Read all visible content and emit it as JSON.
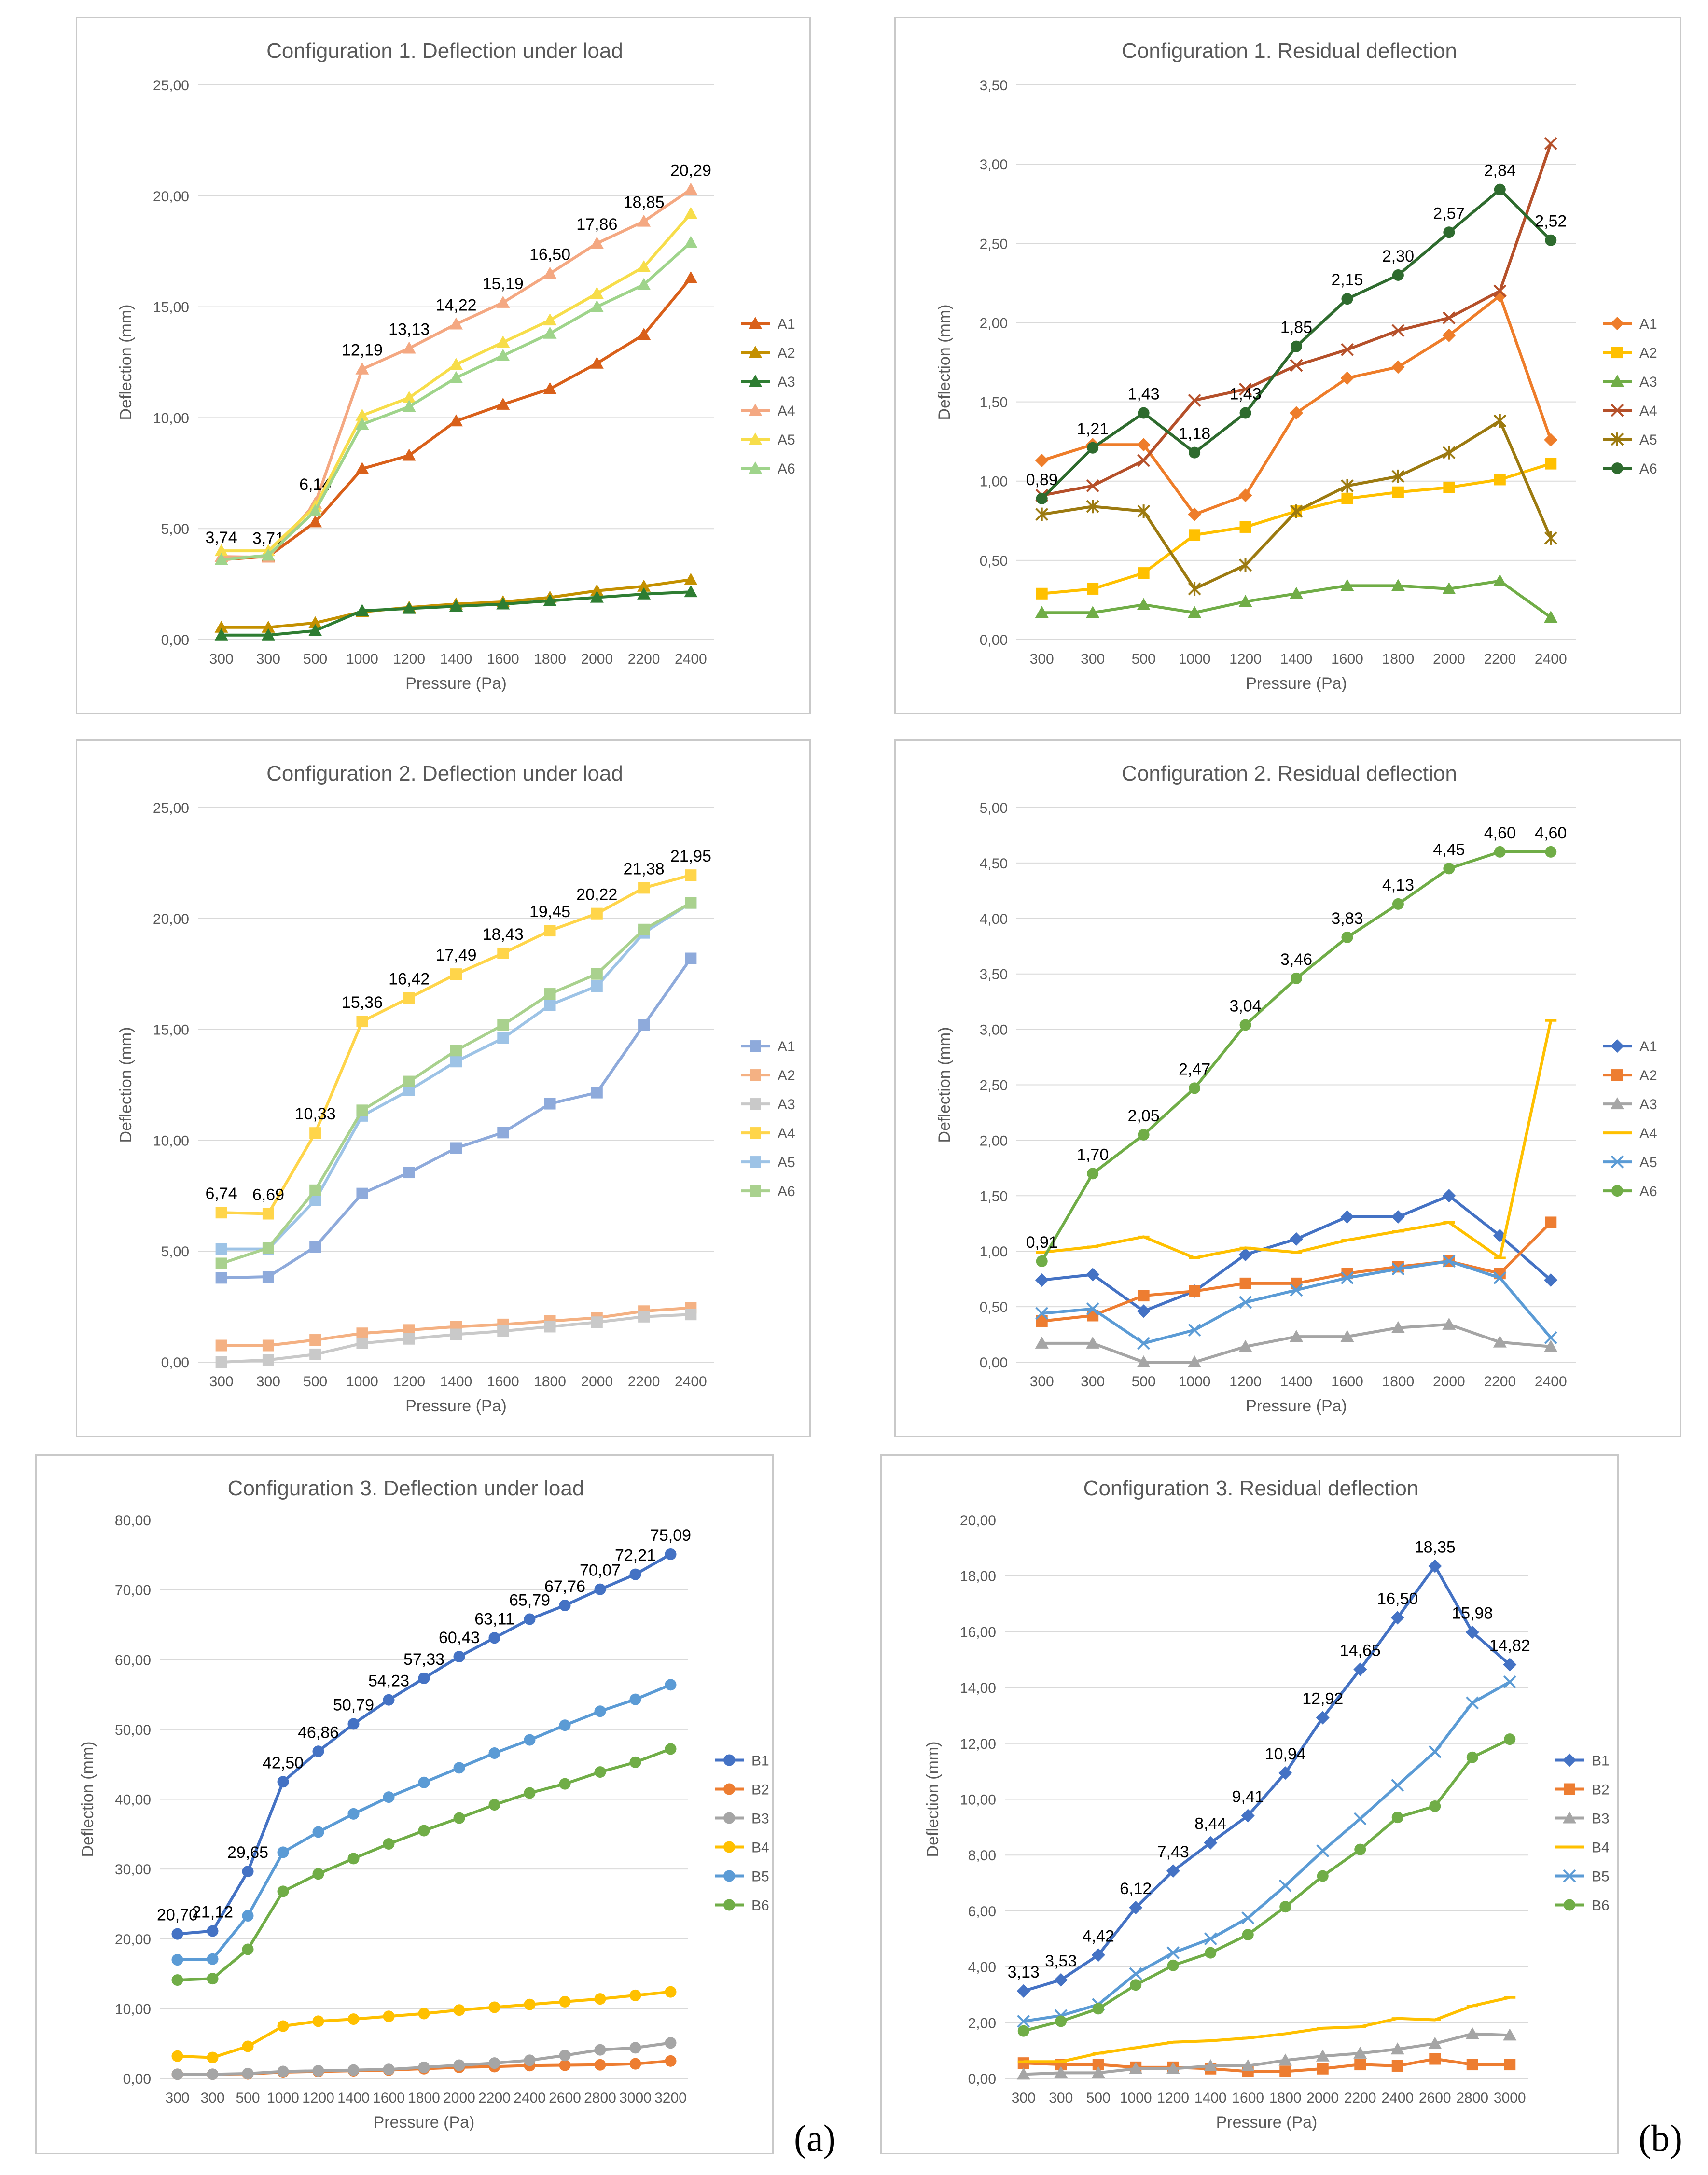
{
  "labels": {
    "a": "(a)",
    "b": "(b)"
  },
  "colors": {
    "A1": "#d9601a",
    "A2": "#c49000",
    "A3": "#2e7d32",
    "A4": "#f4a882",
    "A5": "#f7dd4a",
    "A6": "#9fd48b",
    "C1": "#ee7d2a",
    "C2": "#ffc000",
    "C3": "#70ad47",
    "C4": "#b5502a",
    "C5": "#9c7a10",
    "C6": "#2e6b2e",
    "P1": "#4472c4",
    "P2": "#ed7d31",
    "P3": "#a5a5a5",
    "P4": "#ffc000",
    "P5": "#5b9bd5",
    "P6": "#70ad47",
    "Q1": "#8eaadb",
    "Q2": "#f4b183",
    "Q3": "#c9c9c9",
    "Q4": "#ffd54a",
    "Q5": "#9dc3e6",
    "Q6": "#a9d18e"
  },
  "chart_data": [
    {
      "type": "line",
      "title": "Configuration 1. Deflection under load",
      "xlabel": "Pressure (Pa)",
      "ylabel": "Deflection (mm)",
      "ylim": [
        0,
        25
      ],
      "yticks": [
        "0,00",
        "5,00",
        "10,00",
        "15,00",
        "20,00",
        "25,00"
      ],
      "categories": [
        "300",
        "300",
        "500",
        "1000",
        "1200",
        "1400",
        "1600",
        "1800",
        "2000",
        "2200",
        "2400"
      ],
      "legend": "right",
      "grid": "horizontal",
      "series": [
        {
          "name": "A1",
          "color": "A1",
          "marker": "triangle",
          "values": [
            3.6,
            3.75,
            5.3,
            7.7,
            8.3,
            9.85,
            10.6,
            11.3,
            12.45,
            13.75,
            16.3
          ]
        },
        {
          "name": "A2",
          "color": "A2",
          "marker": "triangle",
          "values": [
            0.55,
            0.55,
            0.75,
            1.25,
            1.45,
            1.6,
            1.7,
            1.9,
            2.2,
            2.4,
            2.7
          ]
        },
        {
          "name": "A3",
          "color": "A3",
          "marker": "triangle",
          "values": [
            0.2,
            0.2,
            0.4,
            1.3,
            1.4,
            1.5,
            1.6,
            1.75,
            1.9,
            2.05,
            2.15
          ]
        },
        {
          "name": "A4",
          "color": "A4",
          "marker": "triangle",
          "values": [
            3.74,
            3.71,
            6.14,
            12.19,
            13.13,
            14.22,
            15.19,
            16.5,
            17.86,
            18.85,
            20.29
          ],
          "labels": [
            "3,74",
            "3,71",
            "6,14",
            "12,19",
            "13,13",
            "14,22",
            "15,19",
            "16,50",
            "17,86",
            "18,85",
            "20,29"
          ]
        },
        {
          "name": "A5",
          "color": "A5",
          "marker": "triangle",
          "values": [
            4.0,
            4.0,
            6.0,
            10.1,
            10.9,
            12.4,
            13.4,
            14.4,
            15.6,
            16.8,
            19.2
          ]
        },
        {
          "name": "A6",
          "color": "A6",
          "marker": "triangle",
          "values": [
            3.6,
            3.8,
            5.8,
            9.7,
            10.5,
            11.8,
            12.8,
            13.8,
            15.0,
            16.0,
            17.9
          ]
        }
      ]
    },
    {
      "type": "line",
      "title": "Configuration 1. Residual deflection",
      "xlabel": "Pressure (Pa)",
      "ylabel": "Deflection (mm)",
      "ylim": [
        0,
        3.5
      ],
      "yticks": [
        "0,00",
        "0,50",
        "1,00",
        "1,50",
        "2,00",
        "2,50",
        "3,00",
        "3,50"
      ],
      "categories": [
        "300",
        "300",
        "500",
        "1000",
        "1200",
        "1400",
        "1600",
        "1800",
        "2000",
        "2200",
        "2400"
      ],
      "legend": "right",
      "grid": "horizontal",
      "series": [
        {
          "name": "A1",
          "color": "C1",
          "marker": "diamond",
          "values": [
            1.13,
            1.23,
            1.23,
            0.79,
            0.91,
            1.43,
            1.65,
            1.72,
            1.92,
            2.17,
            1.26
          ]
        },
        {
          "name": "A2",
          "color": "C2",
          "marker": "square",
          "values": [
            0.29,
            0.32,
            0.42,
            0.66,
            0.71,
            0.81,
            0.89,
            0.93,
            0.96,
            1.01,
            1.11
          ]
        },
        {
          "name": "A3",
          "color": "C3",
          "marker": "triangle",
          "values": [
            0.17,
            0.17,
            0.22,
            0.17,
            0.24,
            0.29,
            0.34,
            0.34,
            0.32,
            0.37,
            0.14
          ]
        },
        {
          "name": "A4",
          "color": "C4",
          "marker": "x",
          "values": [
            0.91,
            0.97,
            1.13,
            1.51,
            1.58,
            1.73,
            1.83,
            1.95,
            2.03,
            2.2,
            3.13
          ]
        },
        {
          "name": "A5",
          "color": "C5",
          "marker": "star",
          "values": [
            0.79,
            0.84,
            0.81,
            0.32,
            0.47,
            0.81,
            0.97,
            1.03,
            1.18,
            1.38,
            0.64
          ]
        },
        {
          "name": "A6",
          "color": "C6",
          "marker": "circle",
          "values": [
            0.89,
            1.21,
            1.43,
            1.18,
            1.43,
            1.85,
            2.15,
            2.3,
            2.57,
            2.84,
            2.52
          ],
          "labels": [
            "0,89",
            "1,21",
            "1,43",
            "1,18",
            "1,43",
            "1,85",
            "2,15",
            "2,30",
            "2,57",
            "2,84",
            "2,52"
          ]
        }
      ]
    },
    {
      "type": "line",
      "title": "Configuration 2. Deflection under load",
      "xlabel": "Pressure (Pa)",
      "ylabel": "Deflection (mm)",
      "ylim": [
        0,
        25
      ],
      "yticks": [
        "0,00",
        "5,00",
        "10,00",
        "15,00",
        "20,00",
        "25,00"
      ],
      "categories": [
        "300",
        "300",
        "500",
        "1000",
        "1200",
        "1400",
        "1600",
        "1800",
        "2000",
        "2200",
        "2400"
      ],
      "legend": "right",
      "grid": "horizontal",
      "series": [
        {
          "name": "A1",
          "color": "Q1",
          "marker": "square",
          "values": [
            3.8,
            3.85,
            5.2,
            7.6,
            8.55,
            9.65,
            10.35,
            11.65,
            12.15,
            15.2,
            18.2
          ]
        },
        {
          "name": "A2",
          "color": "Q2",
          "marker": "square",
          "values": [
            0.75,
            0.75,
            1.0,
            1.3,
            1.45,
            1.6,
            1.7,
            1.85,
            2.0,
            2.3,
            2.45
          ]
        },
        {
          "name": "A3",
          "color": "Q3",
          "marker": "square",
          "values": [
            0.0,
            0.1,
            0.35,
            0.85,
            1.05,
            1.25,
            1.4,
            1.6,
            1.8,
            2.05,
            2.15
          ]
        },
        {
          "name": "A4",
          "color": "Q4",
          "marker": "square",
          "values": [
            6.74,
            6.69,
            10.33,
            15.36,
            16.42,
            17.49,
            18.43,
            19.45,
            20.22,
            21.38,
            21.95
          ],
          "labels": [
            "6,74",
            "6,69",
            "10,33",
            "15,36",
            "16,42",
            "17,49",
            "18,43",
            "19,45",
            "20,22",
            "21,38",
            "21,95"
          ]
        },
        {
          "name": "A5",
          "color": "Q5",
          "marker": "square",
          "values": [
            5.1,
            5.1,
            7.3,
            11.1,
            12.25,
            13.55,
            14.6,
            16.1,
            16.95,
            19.35,
            20.7
          ]
        },
        {
          "name": "A6",
          "color": "Q6",
          "marker": "square",
          "values": [
            4.45,
            5.15,
            7.75,
            11.35,
            12.65,
            14.05,
            15.2,
            16.6,
            17.5,
            19.5,
            20.7
          ]
        }
      ]
    },
    {
      "type": "line",
      "title": "Configuration 2. Residual deflection",
      "xlabel": "Pressure (Pa)",
      "ylabel": "Deflection (mm)",
      "ylim": [
        0,
        5
      ],
      "yticks": [
        "0,00",
        "0,50",
        "1,00",
        "1,50",
        "2,00",
        "2,50",
        "3,00",
        "3,50",
        "4,00",
        "4,50",
        "5,00"
      ],
      "categories": [
        "300",
        "300",
        "500",
        "1000",
        "1200",
        "1400",
        "1600",
        "1800",
        "2000",
        "2200",
        "2400"
      ],
      "legend": "right",
      "grid": "horizontal",
      "series": [
        {
          "name": "A1",
          "color": "P1",
          "marker": "diamond",
          "values": [
            0.74,
            0.79,
            0.46,
            0.64,
            0.97,
            1.11,
            1.31,
            1.31,
            1.5,
            1.14,
            0.74
          ]
        },
        {
          "name": "A2",
          "color": "P2",
          "marker": "square",
          "values": [
            0.37,
            0.42,
            0.6,
            0.64,
            0.71,
            0.71,
            0.8,
            0.86,
            0.91,
            0.8,
            1.26
          ]
        },
        {
          "name": "A3",
          "color": "P3",
          "marker": "triangle",
          "values": [
            0.17,
            0.17,
            0.0,
            0.0,
            0.14,
            0.23,
            0.23,
            0.31,
            0.34,
            0.18,
            0.14
          ]
        },
        {
          "name": "A4",
          "color": "P4",
          "marker": "dash",
          "values": [
            0.99,
            1.04,
            1.13,
            0.94,
            1.03,
            0.99,
            1.1,
            1.18,
            1.26,
            0.94,
            3.08
          ]
        },
        {
          "name": "A5",
          "color": "P5",
          "marker": "x",
          "values": [
            0.44,
            0.48,
            0.17,
            0.29,
            0.54,
            0.65,
            0.76,
            0.84,
            0.91,
            0.76,
            0.22
          ]
        },
        {
          "name": "A6",
          "color": "P6",
          "marker": "circle",
          "values": [
            0.91,
            1.7,
            2.05,
            2.47,
            3.04,
            3.46,
            3.83,
            4.13,
            4.45,
            4.6,
            4.6
          ],
          "labels": [
            "0,91",
            "1,70",
            "2,05",
            "2,47",
            "3,04",
            "3,46",
            "3,83",
            "4,13",
            "4,45",
            "4,60",
            "4,60"
          ]
        }
      ]
    },
    {
      "type": "line",
      "title": "Configuration 3. Deflection under load",
      "xlabel": "Pressure (Pa)",
      "ylabel": "Deflection (mm)",
      "ylim": [
        0,
        80
      ],
      "yticks": [
        "0,00",
        "10,00",
        "20,00",
        "30,00",
        "40,00",
        "50,00",
        "60,00",
        "70,00",
        "80,00"
      ],
      "categories": [
        "300",
        "300",
        "500",
        "1000",
        "1200",
        "1400",
        "1600",
        "1800",
        "2000",
        "2200",
        "2400",
        "2600",
        "2800",
        "3000",
        "3200"
      ],
      "legend": "right",
      "grid": "horizontal",
      "series": [
        {
          "name": "B1",
          "color": "P1",
          "marker": "circle",
          "values": [
            20.7,
            21.12,
            29.65,
            42.5,
            46.86,
            50.79,
            54.23,
            57.33,
            60.43,
            63.11,
            65.79,
            67.76,
            70.07,
            72.21,
            75.09
          ],
          "labels": [
            "20,70",
            "21,12",
            "29,65",
            "42,50",
            "46,86",
            "50,79",
            "54,23",
            "57,33",
            "60,43",
            "63,11",
            "65,79",
            "67,76",
            "70,07",
            "72,21",
            "75,09"
          ]
        },
        {
          "name": "B2",
          "color": "P2",
          "marker": "circle",
          "values": [
            0.6,
            0.6,
            0.65,
            0.9,
            1.0,
            1.1,
            1.2,
            1.4,
            1.6,
            1.7,
            1.85,
            1.9,
            1.95,
            2.1,
            2.5
          ]
        },
        {
          "name": "B3",
          "color": "P3",
          "marker": "circle",
          "values": [
            0.6,
            0.6,
            0.7,
            1.0,
            1.1,
            1.2,
            1.3,
            1.6,
            1.9,
            2.2,
            2.6,
            3.3,
            4.1,
            4.4,
            5.1
          ]
        },
        {
          "name": "B4",
          "color": "P4",
          "marker": "circle",
          "values": [
            3.2,
            3.0,
            4.6,
            7.5,
            8.2,
            8.5,
            8.9,
            9.3,
            9.8,
            10.2,
            10.6,
            11.0,
            11.4,
            11.9,
            12.4
          ]
        },
        {
          "name": "B5",
          "color": "P5",
          "marker": "circle",
          "values": [
            17.0,
            17.1,
            23.3,
            32.4,
            35.3,
            37.9,
            40.3,
            42.4,
            44.5,
            46.6,
            48.5,
            50.6,
            52.6,
            54.3,
            56.4
          ]
        },
        {
          "name": "B6",
          "color": "P6",
          "marker": "circle",
          "values": [
            14.1,
            14.3,
            18.5,
            26.8,
            29.3,
            31.5,
            33.6,
            35.5,
            37.3,
            39.2,
            40.9,
            42.2,
            43.9,
            45.3,
            47.2
          ]
        }
      ]
    },
    {
      "type": "line",
      "title": "Configuration 3. Residual deflection",
      "xlabel": "Pressure (Pa)",
      "ylabel": "Deflection (mm)",
      "ylim": [
        0,
        20
      ],
      "yticks": [
        "0,00",
        "2,00",
        "4,00",
        "6,00",
        "8,00",
        "10,00",
        "12,00",
        "14,00",
        "16,00",
        "18,00",
        "20,00"
      ],
      "categories": [
        "300",
        "300",
        "500",
        "1000",
        "1200",
        "1400",
        "1600",
        "1800",
        "2000",
        "2200",
        "2400",
        "2600",
        "2800",
        "3000"
      ],
      "legend": "right",
      "grid": "horizontal",
      "series": [
        {
          "name": "B1",
          "color": "P1",
          "marker": "diamond",
          "values": [
            3.13,
            3.53,
            4.42,
            6.12,
            7.43,
            8.44,
            9.41,
            10.94,
            12.92,
            14.65,
            16.5,
            18.35,
            15.98,
            14.82
          ],
          "labels": [
            "3,13",
            "3,53",
            "4,42",
            "6,12",
            "7,43",
            "8,44",
            "9,41",
            "10,94",
            "12,92",
            "14,65",
            "16,50",
            "18,35",
            "15,98",
            "14,82"
          ]
        },
        {
          "name": "B2",
          "color": "P2",
          "marker": "square",
          "values": [
            0.55,
            0.5,
            0.5,
            0.4,
            0.4,
            0.35,
            0.25,
            0.25,
            0.35,
            0.5,
            0.45,
            0.7,
            0.5,
            0.5
          ]
        },
        {
          "name": "B3",
          "color": "P3",
          "marker": "triangle",
          "values": [
            0.15,
            0.2,
            0.2,
            0.35,
            0.35,
            0.45,
            0.45,
            0.65,
            0.8,
            0.9,
            1.05,
            1.25,
            1.6,
            1.55
          ]
        },
        {
          "name": "B4",
          "color": "P4",
          "marker": "dash",
          "values": [
            0.6,
            0.6,
            0.9,
            1.1,
            1.3,
            1.35,
            1.45,
            1.6,
            1.8,
            1.85,
            2.15,
            2.1,
            2.6,
            2.9
          ]
        },
        {
          "name": "B5",
          "color": "P5",
          "marker": "x",
          "values": [
            2.05,
            2.25,
            2.65,
            3.75,
            4.5,
            5.0,
            5.75,
            6.9,
            8.15,
            9.3,
            10.5,
            11.7,
            13.45,
            14.2
          ]
        },
        {
          "name": "B6",
          "color": "P6",
          "marker": "circle",
          "values": [
            1.7,
            2.05,
            2.5,
            3.35,
            4.05,
            4.5,
            5.15,
            6.15,
            7.25,
            8.2,
            9.35,
            9.75,
            11.5,
            12.15
          ]
        }
      ]
    }
  ]
}
